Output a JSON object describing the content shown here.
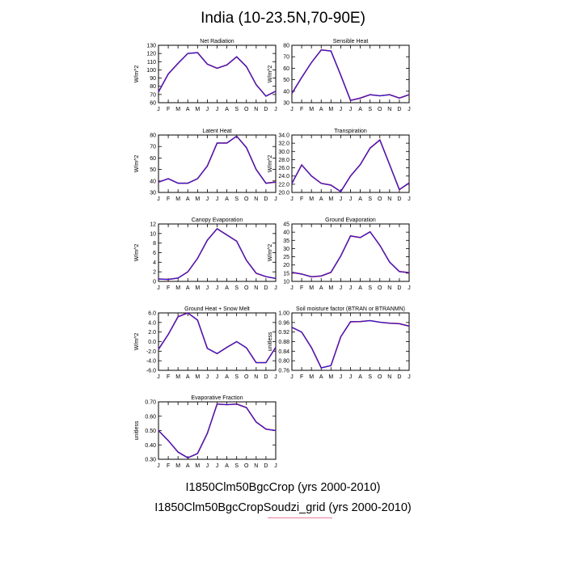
{
  "title": "India (10-23.5N,70-90E)",
  "colors": {
    "series_1": "#ff0000",
    "series_2": "#2020e0"
  },
  "legend": [
    "I1850Clm50BgcCrop (yrs 2000-2010)",
    "I1850Clm50BgcCropSoudzi_grid (yrs 2000-2010)"
  ],
  "chart_data": [
    {
      "type": "line",
      "title": "Net Radiation",
      "ylabel": "W/m^2",
      "categories": [
        "J",
        "F",
        "M",
        "A",
        "M",
        "J",
        "J",
        "A",
        "S",
        "O",
        "N",
        "D",
        "J"
      ],
      "ylim": [
        60,
        130
      ],
      "yticks": [
        60,
        70,
        80,
        90,
        100,
        110,
        120,
        130
      ],
      "ytick_labels": [
        "60",
        "70",
        "80",
        "90",
        "100",
        "110",
        "120",
        "130"
      ],
      "series": [
        {
          "values": [
            73,
            95,
            108,
            120,
            121,
            107,
            102,
            106,
            116,
            104,
            82,
            68,
            74
          ]
        }
      ]
    },
    {
      "type": "line",
      "title": "Sensible Heat",
      "ylabel": "W/m^2",
      "categories": [
        "J",
        "F",
        "M",
        "A",
        "M",
        "J",
        "J",
        "A",
        "S",
        "O",
        "N",
        "D",
        "J"
      ],
      "ylim": [
        30,
        80
      ],
      "yticks": [
        30,
        40,
        50,
        60,
        70,
        80
      ],
      "ytick_labels": [
        "30",
        "40",
        "50",
        "60",
        "70",
        "80"
      ],
      "series": [
        {
          "values": [
            38,
            52,
            65,
            76,
            75,
            54,
            32,
            34,
            37,
            36,
            37,
            34,
            37
          ]
        }
      ]
    },
    {
      "type": "line",
      "title": "Latent Heat",
      "ylabel": "W/m^2",
      "categories": [
        "J",
        "F",
        "M",
        "A",
        "M",
        "J",
        "J",
        "A",
        "S",
        "O",
        "N",
        "D",
        "J"
      ],
      "ylim": [
        30,
        80
      ],
      "yticks": [
        30,
        40,
        50,
        60,
        70,
        80
      ],
      "ytick_labels": [
        "30",
        "40",
        "50",
        "60",
        "70",
        "80"
      ],
      "series": [
        {
          "values": [
            39,
            42,
            38,
            38,
            42,
            53,
            73,
            73,
            79,
            69,
            50,
            38,
            39
          ]
        }
      ]
    },
    {
      "type": "line",
      "title": "Transpiration",
      "ylabel": "W/m^2",
      "categories": [
        "J",
        "F",
        "M",
        "A",
        "M",
        "J",
        "J",
        "A",
        "S",
        "O",
        "N",
        "D",
        "J"
      ],
      "ylim": [
        20,
        34
      ],
      "yticks": [
        20,
        22,
        24,
        26,
        28,
        30,
        32,
        34
      ],
      "ytick_labels": [
        "20.0",
        "22.0",
        "24.0",
        "26.0",
        "28.0",
        "30.0",
        "32.0",
        "34.0"
      ],
      "series": [
        {
          "values": [
            22.2,
            26.7,
            24.0,
            22.2,
            21.8,
            20.2,
            24.0,
            26.8,
            30.8,
            32.8,
            26.8,
            20.7,
            22.3
          ]
        }
      ]
    },
    {
      "type": "line",
      "title": "Canopy Evaporation",
      "ylabel": "W/m^2",
      "categories": [
        "J",
        "F",
        "M",
        "A",
        "M",
        "J",
        "J",
        "A",
        "S",
        "O",
        "N",
        "D",
        "J"
      ],
      "ylim": [
        0,
        12
      ],
      "yticks": [
        0,
        2,
        4,
        6,
        8,
        10,
        12
      ],
      "ytick_labels": [
        "0",
        "2",
        "4",
        "6",
        "8",
        "10",
        "12"
      ],
      "series": [
        {
          "values": [
            0.5,
            0.4,
            0.7,
            2.0,
            4.8,
            8.6,
            11.0,
            9.7,
            8.4,
            4.4,
            1.7,
            1.0,
            0.6
          ]
        }
      ]
    },
    {
      "type": "line",
      "title": "Ground Evaporation",
      "ylabel": "W/m^2",
      "categories": [
        "J",
        "F",
        "M",
        "A",
        "M",
        "J",
        "J",
        "A",
        "S",
        "O",
        "N",
        "D",
        "J"
      ],
      "ylim": [
        10,
        45
      ],
      "yticks": [
        10,
        15,
        20,
        25,
        30,
        35,
        40,
        45
      ],
      "ytick_labels": [
        "10",
        "15",
        "20",
        "25",
        "30",
        "35",
        "40",
        "45"
      ],
      "series": [
        {
          "values": [
            15.5,
            14.5,
            12.8,
            13.3,
            15.5,
            25.5,
            37.7,
            36.7,
            40.2,
            32.0,
            21.8,
            16.0,
            15.3
          ]
        }
      ]
    },
    {
      "type": "line",
      "title": "Ground Heat + Snow Melt",
      "ylabel": "W/m^2",
      "categories": [
        "J",
        "F",
        "M",
        "A",
        "M",
        "J",
        "J",
        "A",
        "S",
        "O",
        "N",
        "D",
        "J"
      ],
      "ylim": [
        -6,
        6
      ],
      "yticks": [
        -6,
        -4,
        -2,
        0,
        2,
        4,
        6
      ],
      "ytick_labels": [
        "-6.0",
        "-4.0",
        "-2.0",
        "0.0",
        "2.0",
        "4.0",
        "6.0"
      ],
      "series": [
        {
          "values": [
            -1.6,
            1.5,
            5.2,
            6.0,
            4.5,
            -1.4,
            -2.5,
            -1.2,
            0.0,
            -1.3,
            -4.4,
            -4.4,
            -1.2
          ]
        }
      ]
    },
    {
      "type": "line",
      "title": "Soil moisture factor (BTRAN or BTRANMN)",
      "ylabel": "unitless",
      "categories": [
        "J",
        "F",
        "M",
        "A",
        "M",
        "J",
        "J",
        "A",
        "S",
        "O",
        "N",
        "D",
        "J"
      ],
      "ylim": [
        0.76,
        1.0
      ],
      "yticks": [
        0.76,
        0.8,
        0.84,
        0.88,
        0.92,
        0.96,
        1.0
      ],
      "ytick_labels": [
        "0.76",
        "0.80",
        "0.84",
        "0.88",
        "0.92",
        "0.96",
        "1.00"
      ],
      "series": [
        {
          "values": [
            0.94,
            0.92,
            0.855,
            0.77,
            0.78,
            0.9,
            0.963,
            0.964,
            0.968,
            0.961,
            0.957,
            0.955,
            0.945
          ]
        }
      ]
    },
    {
      "type": "line",
      "title": "Evaporative Fraction",
      "ylabel": "unitless",
      "categories": [
        "J",
        "F",
        "M",
        "A",
        "M",
        "J",
        "J",
        "A",
        "S",
        "O",
        "N",
        "D",
        "J"
      ],
      "ylim": [
        0.3,
        0.7
      ],
      "yticks": [
        0.3,
        0.4,
        0.5,
        0.6,
        0.7
      ],
      "ytick_labels": [
        "0.30",
        "0.40",
        "0.50",
        "0.60",
        "0.70"
      ],
      "series": [
        {
          "values": [
            0.5,
            0.43,
            0.35,
            0.31,
            0.34,
            0.48,
            0.685,
            0.68,
            0.685,
            0.66,
            0.56,
            0.51,
            0.5
          ]
        }
      ]
    }
  ]
}
